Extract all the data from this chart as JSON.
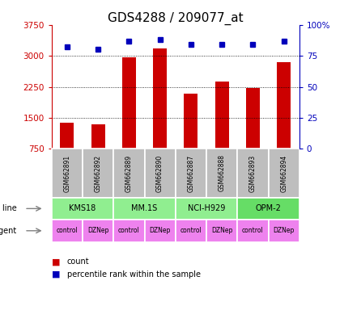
{
  "title": "GDS4288 / 209077_at",
  "samples": [
    "GSM662891",
    "GSM662892",
    "GSM662889",
    "GSM662890",
    "GSM662887",
    "GSM662888",
    "GSM662893",
    "GSM662894"
  ],
  "counts": [
    1380,
    1350,
    2960,
    3170,
    2080,
    2380,
    2230,
    2850
  ],
  "percentile_ranks": [
    82,
    80,
    87,
    88,
    84,
    84,
    84,
    87
  ],
  "cell_lines": [
    {
      "name": "KMS18",
      "span": [
        0,
        2
      ],
      "color": "#90EE90"
    },
    {
      "name": "MM.1S",
      "span": [
        2,
        4
      ],
      "color": "#90EE90"
    },
    {
      "name": "NCI-H929",
      "span": [
        4,
        6
      ],
      "color": "#90EE90"
    },
    {
      "name": "OPM-2",
      "span": [
        6,
        8
      ],
      "color": "#66DD66"
    }
  ],
  "agents": [
    "control",
    "DZNep",
    "control",
    "DZNep",
    "control",
    "DZNep",
    "control",
    "DZNep"
  ],
  "agent_color": "#EE82EE",
  "sample_bg_color": "#BEBEBE",
  "bar_color": "#CC0000",
  "dot_color": "#0000BB",
  "ylim_left": [
    750,
    3750
  ],
  "ylim_right": [
    0,
    100
  ],
  "yticks_left": [
    750,
    1500,
    2250,
    3000,
    3750
  ],
  "yticks_right": [
    0,
    25,
    50,
    75,
    100
  ],
  "grid_values": [
    1500,
    2250,
    3000
  ],
  "left_axis_color": "#CC0000",
  "right_axis_color": "#0000BB",
  "title_fontsize": 11,
  "tick_fontsize": 7.5,
  "label_fontsize": 8
}
